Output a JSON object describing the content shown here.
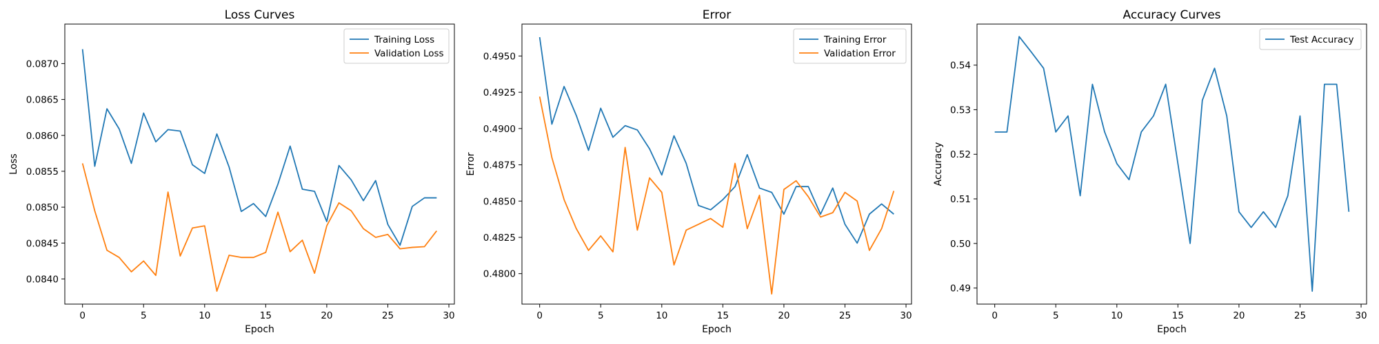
{
  "chart_data": [
    {
      "type": "line",
      "title": "Loss Curves",
      "xlabel": "Epoch",
      "ylabel": "Loss",
      "xlim": [
        -1.45,
        30.45
      ],
      "ylim": [
        0.08365,
        0.08755
      ],
      "xticks": [
        0,
        5,
        10,
        15,
        20,
        25,
        30
      ],
      "yticks": [
        0.084,
        0.0845,
        0.085,
        0.0855,
        0.086,
        0.0865,
        0.087
      ],
      "ytick_labels": [
        "0.0840",
        "0.0845",
        "0.0850",
        "0.0855",
        "0.0860",
        "0.0865",
        "0.0870"
      ],
      "legend_position": "upper-right",
      "grid": false,
      "x": [
        0,
        1,
        2,
        3,
        4,
        5,
        6,
        7,
        8,
        9,
        10,
        11,
        12,
        13,
        14,
        15,
        16,
        17,
        18,
        19,
        20,
        21,
        22,
        23,
        24,
        25,
        26,
        27,
        28,
        29
      ],
      "series": [
        {
          "name": "Training Loss",
          "color": "#1f77b4",
          "values": [
            0.0872,
            0.08557,
            0.08637,
            0.08609,
            0.08561,
            0.08631,
            0.08591,
            0.08608,
            0.08606,
            0.08559,
            0.08547,
            0.08602,
            0.08556,
            0.08494,
            0.08505,
            0.08487,
            0.08532,
            0.08585,
            0.08525,
            0.08522,
            0.0848,
            0.08558,
            0.08538,
            0.08509,
            0.08537,
            0.08476,
            0.08447,
            0.08501,
            0.08513,
            0.08513
          ]
        },
        {
          "name": "Validation Loss",
          "color": "#ff7f0e",
          "values": [
            0.08561,
            0.08495,
            0.0844,
            0.0843,
            0.0841,
            0.08425,
            0.08405,
            0.08521,
            0.08432,
            0.08471,
            0.08474,
            0.08383,
            0.08433,
            0.0843,
            0.0843,
            0.08437,
            0.08493,
            0.08438,
            0.08454,
            0.08408,
            0.08474,
            0.08506,
            0.08495,
            0.0847,
            0.08458,
            0.08462,
            0.08442,
            0.08444,
            0.08445,
            0.08467
          ]
        }
      ]
    },
    {
      "type": "line",
      "title": "Error",
      "xlabel": "Epoch",
      "ylabel": "Error",
      "xlim": [
        -1.45,
        30.45
      ],
      "ylim": [
        0.4779,
        0.4972
      ],
      "xticks": [
        0,
        5,
        10,
        15,
        20,
        25,
        30
      ],
      "yticks": [
        0.48,
        0.4825,
        0.485,
        0.4875,
        0.49,
        0.4925,
        0.495
      ],
      "ytick_labels": [
        "0.4800",
        "0.4825",
        "0.4850",
        "0.4875",
        "0.4900",
        "0.4925",
        "0.4950"
      ],
      "legend_position": "upper-right",
      "grid": false,
      "x": [
        0,
        1,
        2,
        3,
        4,
        5,
        6,
        7,
        8,
        9,
        10,
        11,
        12,
        13,
        14,
        15,
        16,
        17,
        18,
        19,
        20,
        21,
        22,
        23,
        24,
        25,
        26,
        27,
        28,
        29
      ],
      "series": [
        {
          "name": "Training Error",
          "color": "#1f77b4",
          "values": [
            0.4963,
            0.4903,
            0.4929,
            0.4909,
            0.4885,
            0.4914,
            0.4894,
            0.4902,
            0.4899,
            0.4886,
            0.4868,
            0.4895,
            0.4876,
            0.4847,
            0.4844,
            0.4851,
            0.486,
            0.4882,
            0.4859,
            0.4856,
            0.4841,
            0.486,
            0.486,
            0.4841,
            0.4859,
            0.4834,
            0.4821,
            0.4841,
            0.4848,
            0.4841
          ]
        },
        {
          "name": "Validation Error",
          "color": "#ff7f0e",
          "values": [
            0.4922,
            0.488,
            0.4851,
            0.4831,
            0.4816,
            0.4826,
            0.4815,
            0.4887,
            0.483,
            0.4866,
            0.4856,
            0.4806,
            0.483,
            0.4834,
            0.4838,
            0.4832,
            0.4876,
            0.4831,
            0.4854,
            0.4786,
            0.4858,
            0.4864,
            0.4853,
            0.4839,
            0.4842,
            0.4856,
            0.485,
            0.4816,
            0.4831,
            0.4857
          ]
        }
      ]
    },
    {
      "type": "line",
      "title": "Accuracy Curves",
      "xlabel": "Epoch",
      "ylabel": "Accuracy",
      "xlim": [
        -1.45,
        30.45
      ],
      "ylim": [
        0.4864,
        0.5492
      ],
      "xticks": [
        0,
        5,
        10,
        15,
        20,
        25,
        30
      ],
      "yticks": [
        0.49,
        0.5,
        0.51,
        0.52,
        0.53,
        0.54
      ],
      "ytick_labels": [
        "0.49",
        "0.50",
        "0.51",
        "0.52",
        "0.53",
        "0.54"
      ],
      "legend_position": "upper-right",
      "grid": false,
      "x": [
        0,
        1,
        2,
        3,
        4,
        5,
        6,
        7,
        8,
        9,
        10,
        11,
        12,
        13,
        14,
        15,
        16,
        17,
        18,
        19,
        20,
        21,
        22,
        23,
        24,
        25,
        26,
        27,
        28,
        29
      ],
      "series": [
        {
          "name": "Test Accuracy",
          "color": "#1f77b4",
          "values": [
            0.525,
            0.525,
            0.5464,
            0.5429,
            0.5393,
            0.525,
            0.5286,
            0.5107,
            0.5357,
            0.525,
            0.5179,
            0.5143,
            0.525,
            0.5286,
            0.5357,
            0.5179,
            0.5,
            0.5321,
            0.5393,
            0.5286,
            0.5071,
            0.5036,
            0.5071,
            0.5036,
            0.5107,
            0.5286,
            0.4893,
            0.5357,
            0.5357,
            0.5071
          ]
        }
      ]
    }
  ]
}
